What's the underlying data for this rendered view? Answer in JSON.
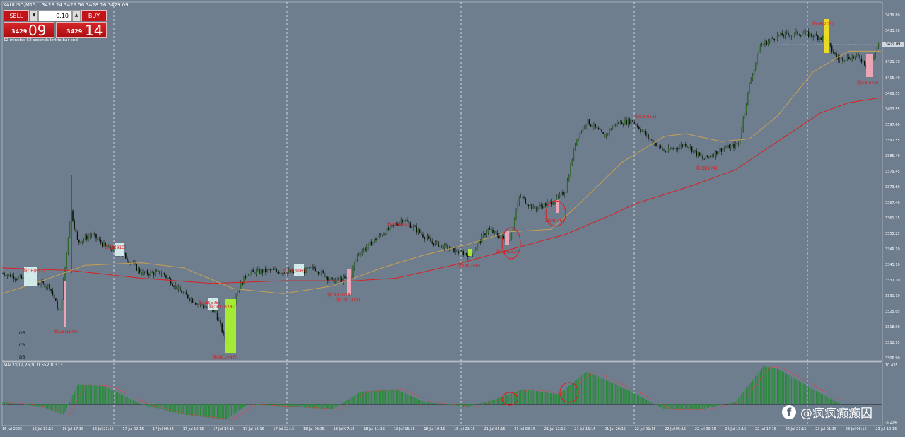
{
  "header": {
    "symbol_title": "XAUUSD,M15",
    "ohlc": "3428.24 3429.56 3428.16 3429.09"
  },
  "trade_panel": {
    "sell_label": "SELL",
    "buy_label": "BUY",
    "lot_value": "0.10",
    "sell_price_small": "3429",
    "sell_price_big": "09",
    "buy_price_small": "3429",
    "buy_price_big": "14",
    "timer_text": "12 minutes 52 seconds left to bar end"
  },
  "legend": {
    "items": [
      "OB",
      "CB",
      "DB"
    ]
  },
  "current_price": "3429.09",
  "macd": {
    "label": "MACD(12,26,9) 0.552 0.373",
    "axis_top": "10.435",
    "axis_bottom": "-5.234"
  },
  "y_axis_ticks": [
    "3439.80",
    "3433.70",
    "3421.70",
    "3415.40",
    "3409.55",
    "3403.55",
    "3397.60",
    "3391.55",
    "3385.40",
    "3379.45",
    "3373.60",
    "3367.40",
    "3361.25",
    "3355.25",
    "3349.10",
    "3343.10",
    "3337.10",
    "3331.10",
    "3325.05",
    "3318.90",
    "3312.95",
    "3306.90"
  ],
  "x_axis_ticks": [
    "16 Jul 2025",
    "16 Jul 13:15",
    "16 Jul 17:15",
    "16 Jul 21:15",
    "17 Jul 02:15",
    "17 Jul 06:15",
    "17 Jul 10:15",
    "17 Jul 14:15",
    "17 Jul 18:15",
    "17 Jul 22:15",
    "18 Jul 03:15",
    "18 Jul 07:15",
    "18 Jul 11:15",
    "18 Jul 15:15",
    "18 Jul 19:15",
    "18 Jul 23:15",
    "21 Jul 04:15",
    "21 Jul 08:15",
    "21 Jul 12:15",
    "21 Jul 16:15",
    "21 Jul 20:15",
    "22 Jul 01:15",
    "22 Jul 05:15",
    "22 Jul 09:15",
    "22 Jul 13:15",
    "22 Jul 17:15",
    "22 Jul 21:15",
    "23 Jul 01:15",
    "23 Jul 06:15",
    "23 Jul 10:15"
  ],
  "annotations": [
    "跌CB(852)",
    "跌CB(1849)",
    "跌CB(595)",
    "跌OB(1628)",
    "涨OB(2047)",
    "跌CB(915)",
    "跌OB(916)",
    "涨OB(1029)",
    "涨CB(1029)",
    "跌OB(569)",
    "涨OB(269)",
    "涨CB(522)",
    "跌CB(465)",
    "跌CB(851)",
    "涨CB(274)",
    "跌OB(203)",
    "涨CB(673)"
  ],
  "watermark": "@疯疯癫癫囚",
  "colors": {
    "background": "#6f7e8f",
    "bull_candle": "#101a0e",
    "bear_candle": "#101a0e",
    "ma_slow": "#d82020",
    "ma_fast": "#c8a050",
    "macd_hist": "#2a8a3a",
    "signal": "#e04040",
    "zone_green": "#a8f030",
    "zone_pink": "#f0a8b8",
    "zone_white": "#d8f0f0",
    "zone_yellow": "#f0e020"
  },
  "chart_data": {
    "type": "candlestick",
    "title": "XAUUSD,M15",
    "ylim": [
      3306.9,
      3439.8
    ],
    "key_prices": [
      {
        "label": "16 Jul 2025",
        "close": 3340
      },
      {
        "label": "16 Jul 17:15",
        "close": 3350
      },
      {
        "label": "17 Jul 14:15",
        "close": 3313
      },
      {
        "label": "18 Jul 15:15",
        "close": 3358
      },
      {
        "label": "21 Jul 16:15",
        "close": 3398
      },
      {
        "label": "22 Jul 09:15",
        "close": 3384
      },
      {
        "label": "22 Jul 17:15",
        "close": 3432
      },
      {
        "label": "23 Jul 10:15",
        "close": 3429.09
      }
    ]
  }
}
